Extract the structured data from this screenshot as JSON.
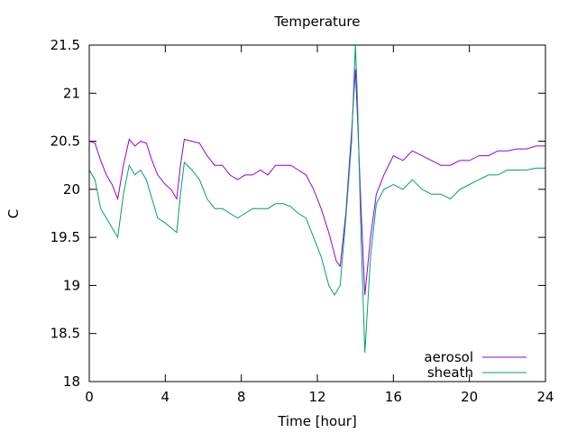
{
  "chart_data": {
    "type": "line",
    "title": "Temperature",
    "xlabel": "Time [hour]",
    "ylabel": "C",
    "xlim": [
      0,
      24
    ],
    "ylim": [
      18,
      21.5
    ],
    "xticks": [
      "0",
      "4",
      "8",
      "12",
      "16",
      "20",
      "24"
    ],
    "yticks": [
      "18",
      "18.5",
      "19",
      "19.5",
      "20",
      "20.5",
      "21",
      "21.5"
    ],
    "grid": false,
    "legend_position": "bottom-right",
    "series": [
      {
        "name": "aerosol",
        "color": "#9400d3",
        "points": [
          [
            0.0,
            20.5
          ],
          [
            0.3,
            20.48
          ],
          [
            0.6,
            20.3
          ],
          [
            0.9,
            20.15
          ],
          [
            1.2,
            20.05
          ],
          [
            1.5,
            19.9
          ],
          [
            1.8,
            20.25
          ],
          [
            2.1,
            20.52
          ],
          [
            2.4,
            20.45
          ],
          [
            2.7,
            20.5
          ],
          [
            3.0,
            20.48
          ],
          [
            3.3,
            20.3
          ],
          [
            3.6,
            20.15
          ],
          [
            4.0,
            20.05
          ],
          [
            4.3,
            20.0
          ],
          [
            4.6,
            19.9
          ],
          [
            4.8,
            20.25
          ],
          [
            5.0,
            20.52
          ],
          [
            5.4,
            20.5
          ],
          [
            5.8,
            20.48
          ],
          [
            6.2,
            20.35
          ],
          [
            6.6,
            20.25
          ],
          [
            7.0,
            20.25
          ],
          [
            7.4,
            20.15
          ],
          [
            7.8,
            20.1
          ],
          [
            8.2,
            20.15
          ],
          [
            8.6,
            20.15
          ],
          [
            9.0,
            20.2
          ],
          [
            9.4,
            20.15
          ],
          [
            9.8,
            20.25
          ],
          [
            10.2,
            20.25
          ],
          [
            10.6,
            20.25
          ],
          [
            11.0,
            20.2
          ],
          [
            11.4,
            20.15
          ],
          [
            11.8,
            20.0
          ],
          [
            12.2,
            19.8
          ],
          [
            12.6,
            19.55
          ],
          [
            13.0,
            19.25
          ],
          [
            13.2,
            19.2
          ],
          [
            13.5,
            19.75
          ],
          [
            13.8,
            20.6
          ],
          [
            14.0,
            21.25
          ],
          [
            14.1,
            20.8
          ],
          [
            14.3,
            19.8
          ],
          [
            14.5,
            18.9
          ],
          [
            14.8,
            19.5
          ],
          [
            15.1,
            19.95
          ],
          [
            15.5,
            20.15
          ],
          [
            16.0,
            20.35
          ],
          [
            16.5,
            20.3
          ],
          [
            17.0,
            20.4
          ],
          [
            17.5,
            20.35
          ],
          [
            18.0,
            20.3
          ],
          [
            18.5,
            20.25
          ],
          [
            19.0,
            20.25
          ],
          [
            19.5,
            20.3
          ],
          [
            20.0,
            20.3
          ],
          [
            20.5,
            20.35
          ],
          [
            21.0,
            20.35
          ],
          [
            21.5,
            20.4
          ],
          [
            22.0,
            20.4
          ],
          [
            22.5,
            20.42
          ],
          [
            23.0,
            20.42
          ],
          [
            23.5,
            20.45
          ],
          [
            24.0,
            20.45
          ]
        ]
      },
      {
        "name": "sheath",
        "color": "#009e73",
        "points": [
          [
            0.0,
            20.2
          ],
          [
            0.3,
            20.1
          ],
          [
            0.6,
            19.8
          ],
          [
            0.9,
            19.7
          ],
          [
            1.2,
            19.6
          ],
          [
            1.5,
            19.5
          ],
          [
            1.8,
            19.95
          ],
          [
            2.1,
            20.25
          ],
          [
            2.4,
            20.15
          ],
          [
            2.7,
            20.2
          ],
          [
            3.0,
            20.1
          ],
          [
            3.3,
            19.9
          ],
          [
            3.6,
            19.7
          ],
          [
            4.0,
            19.65
          ],
          [
            4.3,
            19.6
          ],
          [
            4.6,
            19.55
          ],
          [
            4.8,
            19.95
          ],
          [
            5.0,
            20.28
          ],
          [
            5.4,
            20.2
          ],
          [
            5.8,
            20.1
          ],
          [
            6.2,
            19.9
          ],
          [
            6.6,
            19.8
          ],
          [
            7.0,
            19.8
          ],
          [
            7.4,
            19.75
          ],
          [
            7.8,
            19.7
          ],
          [
            8.2,
            19.75
          ],
          [
            8.6,
            19.8
          ],
          [
            9.0,
            19.8
          ],
          [
            9.4,
            19.8
          ],
          [
            9.8,
            19.85
          ],
          [
            10.2,
            19.85
          ],
          [
            10.6,
            19.82
          ],
          [
            11.0,
            19.75
          ],
          [
            11.4,
            19.7
          ],
          [
            11.8,
            19.5
          ],
          [
            12.2,
            19.3
          ],
          [
            12.6,
            19.0
          ],
          [
            12.9,
            18.9
          ],
          [
            13.2,
            19.0
          ],
          [
            13.5,
            19.7
          ],
          [
            13.8,
            20.5
          ],
          [
            14.0,
            21.5
          ],
          [
            14.1,
            21.0
          ],
          [
            14.3,
            19.5
          ],
          [
            14.5,
            18.3
          ],
          [
            14.8,
            19.3
          ],
          [
            15.1,
            19.85
          ],
          [
            15.5,
            20.0
          ],
          [
            16.0,
            20.05
          ],
          [
            16.5,
            20.0
          ],
          [
            17.0,
            20.1
          ],
          [
            17.5,
            20.0
          ],
          [
            18.0,
            19.95
          ],
          [
            18.5,
            19.95
          ],
          [
            19.0,
            19.9
          ],
          [
            19.5,
            20.0
          ],
          [
            20.0,
            20.05
          ],
          [
            20.5,
            20.1
          ],
          [
            21.0,
            20.15
          ],
          [
            21.5,
            20.15
          ],
          [
            22.0,
            20.2
          ],
          [
            22.5,
            20.2
          ],
          [
            23.0,
            20.2
          ],
          [
            23.5,
            20.22
          ],
          [
            24.0,
            20.22
          ]
        ]
      }
    ]
  }
}
